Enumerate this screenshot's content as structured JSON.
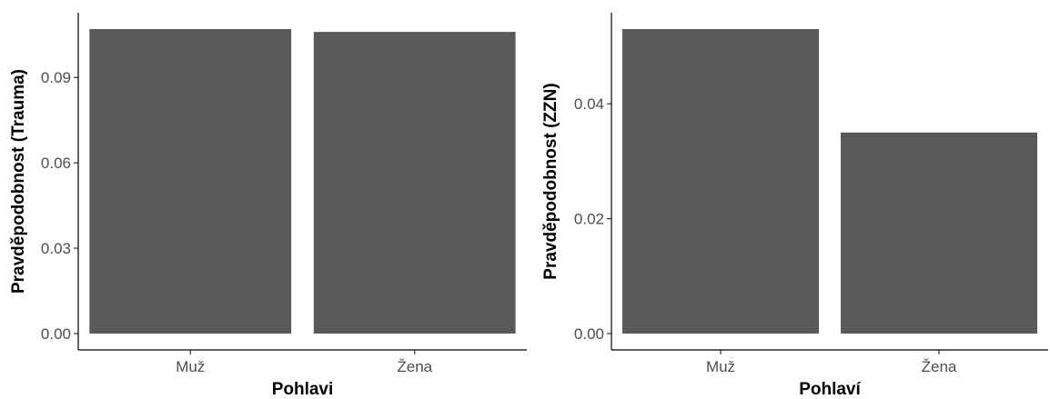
{
  "chart_data": [
    {
      "type": "bar",
      "categories": [
        "Muž",
        "Žena"
      ],
      "values": [
        0.107,
        0.106
      ],
      "xlabel": "Pohlavi",
      "ylabel": "Pravděpodobnost (Trauma)",
      "ylim": [
        0,
        0.107
      ],
      "yticks": [
        0,
        0.03,
        0.06,
        0.09
      ],
      "ytick_labels": [
        "0.00",
        "0.03",
        "0.06",
        "0.09"
      ],
      "grid": false,
      "bar_color": "#595959"
    },
    {
      "type": "bar",
      "categories": [
        "Muž",
        "Žena"
      ],
      "values": [
        0.053,
        0.035
      ],
      "xlabel": "Pohlaví",
      "ylabel": "Pravděpodobnost (ZZN)",
      "ylim": [
        0,
        0.053
      ],
      "yticks": [
        0,
        0.02,
        0.04
      ],
      "ytick_labels": [
        "0.00",
        "0.02",
        "0.04"
      ],
      "grid": false,
      "bar_color": "#595959"
    }
  ]
}
